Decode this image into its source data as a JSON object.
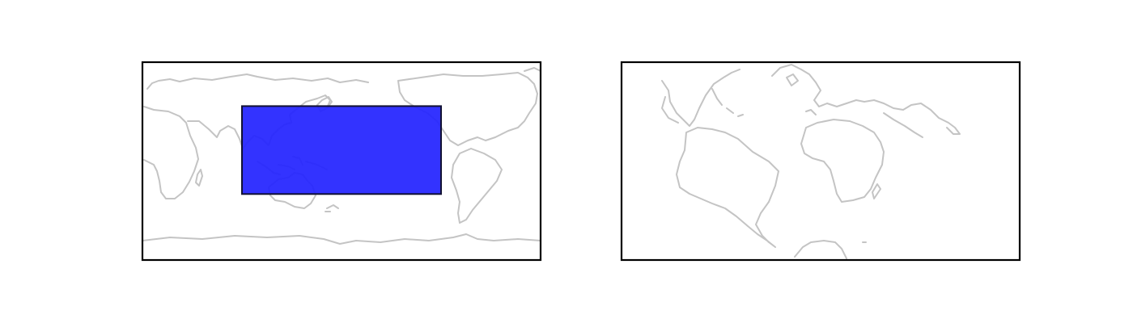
{
  "maps": [
    {
      "projection": "plate-carree",
      "central_longitude": 180,
      "extent": {
        "lon": [
          -180,
          180
        ],
        "lat": [
          -90,
          90
        ]
      },
      "coastline_color": "#c4c4c4",
      "frame_color": "#000000",
      "highlight_region": {
        "lon": [
          90,
          270
        ],
        "lat": [
          -30,
          50
        ],
        "fill_color": "#2222ff",
        "opacity": 0.92,
        "edge_color": "#111133"
      }
    },
    {
      "projection": "plate-carree",
      "central_longitude": 0,
      "extent": {
        "lon": [
          -110,
          70
        ],
        "lat": [
          -60,
          30
        ]
      },
      "coastline_color": "#c4c4c4",
      "frame_color": "#000000",
      "highlight_region": null
    }
  ]
}
